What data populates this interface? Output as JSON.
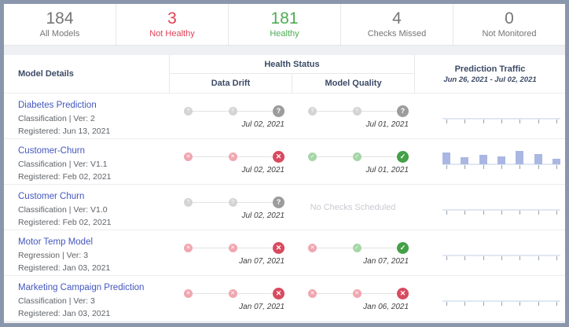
{
  "colors": {
    "accent_link": "#4356be",
    "not_healthy": "#df4155",
    "healthy": "#4cad52",
    "neutral_stat": "#757575",
    "fail_dot": "#d84a5f",
    "pass_dot": "#43a047",
    "unknown_dot": "#9c9c9c",
    "traffic_bar": "#aab7e2"
  },
  "stats": [
    {
      "value": "184",
      "label": "All Models",
      "tone": "neutral"
    },
    {
      "value": "3",
      "label": "Not Healthy",
      "tone": "danger"
    },
    {
      "value": "181",
      "label": "Healthy",
      "tone": "success"
    },
    {
      "value": "4",
      "label": "Checks Missed",
      "tone": "neutral"
    },
    {
      "value": "0",
      "label": "Not Monitored",
      "tone": "neutral"
    }
  ],
  "table": {
    "headers": {
      "model_details": "Model Details",
      "health_status": "Health Status",
      "data_drift": "Data Drift",
      "model_quality": "Model Quality",
      "prediction_traffic": "Prediction Traffic",
      "traffic_range": "Jun 26, 2021 - Jul 02, 2021"
    },
    "status_glyphs": {
      "unknown": "?",
      "fail": "✕",
      "pass": "✓"
    },
    "no_checks_label": "No Checks Scheduled",
    "rows": [
      {
        "name": "Diabetes Prediction",
        "meta": "Classification | Ver: 2",
        "registered": "Registered: Jun 13, 2021",
        "data_drift": {
          "dots": [
            "unknown",
            "unknown",
            "unknown"
          ],
          "date": "Jul 02, 2021"
        },
        "model_quality": {
          "dots": [
            "unknown",
            "unknown",
            "unknown"
          ],
          "date": "Jul 01, 2021"
        },
        "traffic": {
          "bars": [
            0,
            0,
            0,
            0,
            0,
            0,
            0
          ]
        }
      },
      {
        "name": "Customer-Churn",
        "meta": "Classification | Ver: V1.1",
        "registered": "Registered: Feb 02, 2021",
        "data_drift": {
          "dots": [
            "fail",
            "fail",
            "fail"
          ],
          "date": "Jul 02, 2021"
        },
        "model_quality": {
          "dots": [
            "pass",
            "pass",
            "pass"
          ],
          "date": "Jul 01, 2021"
        },
        "traffic": {
          "bars": [
            15,
            9,
            12,
            10,
            17,
            13,
            7
          ]
        }
      },
      {
        "name": "Customer Churn",
        "meta": "Classification | Ver: V1.0",
        "registered": "Registered: Feb 02, 2021",
        "data_drift": {
          "dots": [
            "unknown",
            "unknown",
            "unknown"
          ],
          "date": "Jul 02, 2021"
        },
        "model_quality": {
          "none": true
        },
        "traffic": {
          "bars": [
            0,
            0,
            0,
            0,
            0,
            0,
            0
          ]
        }
      },
      {
        "name": "Motor Temp Model",
        "meta": "Regression | Ver: 3",
        "registered": "Registered: Jan 03, 2021",
        "data_drift": {
          "dots": [
            "fail",
            "fail",
            "fail"
          ],
          "date": "Jan 07, 2021"
        },
        "model_quality": {
          "dots": [
            "fail",
            "pass",
            "pass"
          ],
          "date": "Jan 07, 2021"
        },
        "traffic": {
          "bars": [
            0,
            0,
            0,
            0,
            0,
            0,
            0
          ]
        }
      },
      {
        "name": "Marketing Campaign Prediction",
        "meta": "Classification | Ver: 3",
        "registered": "Registered: Jan 03, 2021",
        "data_drift": {
          "dots": [
            "fail",
            "fail",
            "fail"
          ],
          "date": "Jan 07, 2021"
        },
        "model_quality": {
          "dots": [
            "fail",
            "fail",
            "fail"
          ],
          "date": "Jan 06, 2021"
        },
        "traffic": {
          "bars": [
            0,
            0,
            0,
            0,
            0,
            0,
            0
          ]
        }
      }
    ]
  }
}
